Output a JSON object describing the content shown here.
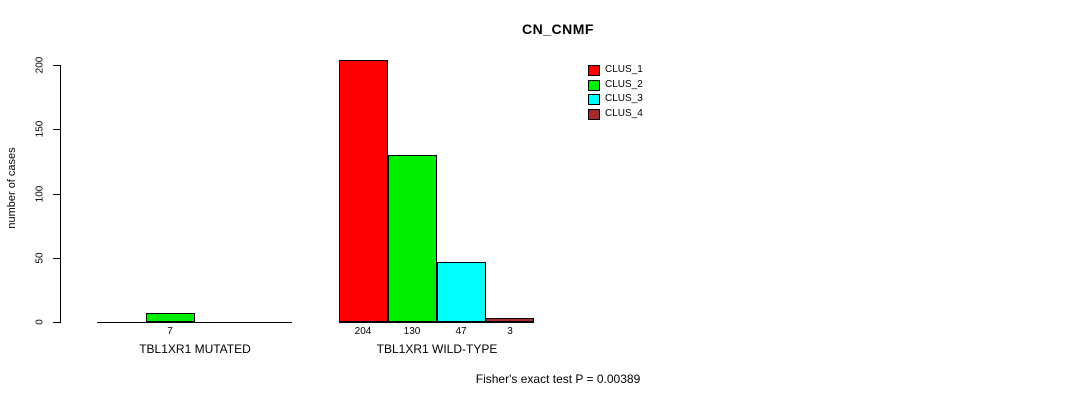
{
  "chart_data": {
    "type": "bar",
    "title": "CN_CNMF",
    "ylabel": "number of cases",
    "xlabel": "",
    "ylim": [
      0,
      200
    ],
    "yticks": [
      0,
      50,
      100,
      150,
      200
    ],
    "grid": false,
    "legend_position": "top-right",
    "series": [
      {
        "name": "CLUS_1",
        "color": "#ff0000"
      },
      {
        "name": "CLUS_2",
        "color": "#00ee00"
      },
      {
        "name": "CLUS_3",
        "color": "#00ffff"
      },
      {
        "name": "CLUS_4",
        "color": "#a52a2a"
      }
    ],
    "groups": [
      {
        "label": "TBL1XR1 MUTATED",
        "values": [
          0,
          7,
          0,
          0
        ],
        "bar_labels": [
          "",
          "7",
          "",
          ""
        ]
      },
      {
        "label": "TBL1XR1 WILD-TYPE",
        "values": [
          204,
          130,
          47,
          3
        ],
        "bar_labels": [
          "204",
          "130",
          "47",
          "3"
        ]
      }
    ],
    "footnote": "Fisher's exact test P = 0.00389"
  },
  "colors": {
    "background": "#ffffff",
    "axis": "#000000",
    "text": "#000000"
  }
}
